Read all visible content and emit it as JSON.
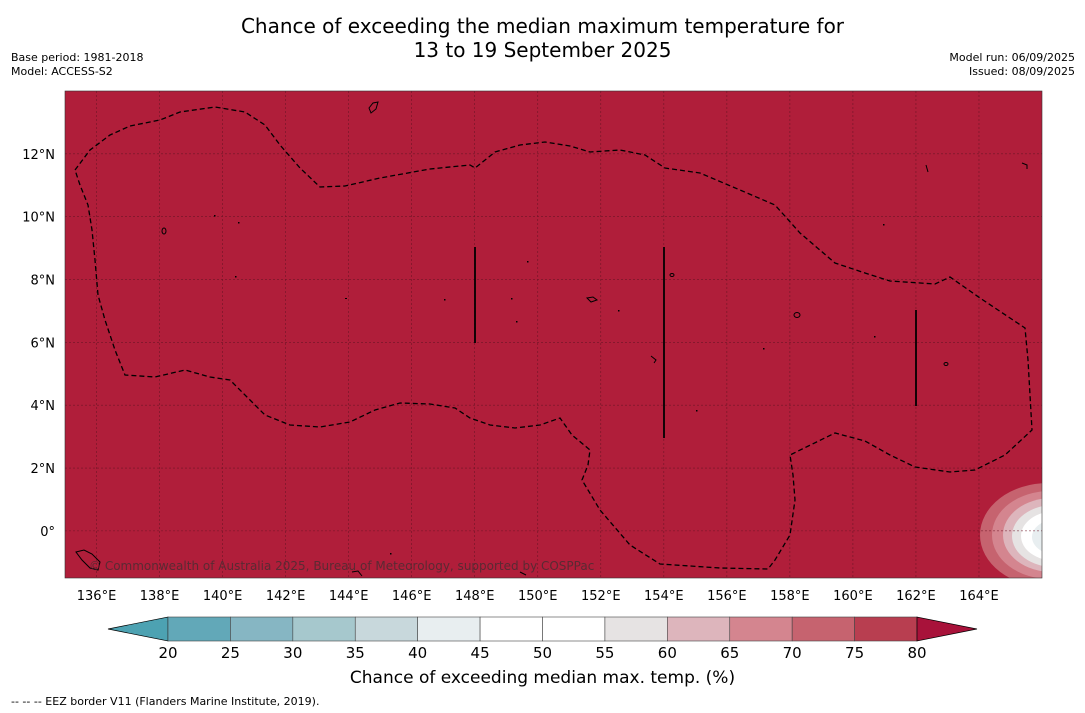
{
  "title": {
    "line1": "Chance of exceeding the median maximum temperature for",
    "line2": "13 to 19 September 2025"
  },
  "meta_left": {
    "base_period": "Base period: 1981-2018",
    "model": "Model: ACCESS-S2"
  },
  "meta_right": {
    "model_run": "Model run: 06/09/2025",
    "issued": "Issued: 08/09/2025"
  },
  "copyright": "© Commonwealth of Australia 2025, Bureau of Meteorology, supported by COSPPac",
  "footnote": "-- -- -- EEZ border V11 (Flanders Marine Institute, 2019).",
  "map": {
    "fill_color": "#b01e3a",
    "lon_range": [
      135,
      166
    ],
    "lat_range": [
      -1.5,
      14
    ],
    "lon_ticks": [
      "136°E",
      "138°E",
      "140°E",
      "142°E",
      "144°E",
      "146°E",
      "148°E",
      "150°E",
      "152°E",
      "154°E",
      "156°E",
      "158°E",
      "160°E",
      "162°E",
      "164°E"
    ],
    "lat_ticks": [
      "0°",
      "2°N",
      "4°N",
      "6°N",
      "8°N",
      "10°N",
      "12°N"
    ],
    "grid": true,
    "cool_anomaly_location": "bottom-right edge near 0°, 165°E"
  },
  "colorbar": {
    "title": "Chance of exceeding median max. temp. (%)",
    "ticks": [
      "20",
      "25",
      "30",
      "35",
      "40",
      "45",
      "50",
      "55",
      "60",
      "65",
      "70",
      "75",
      "80"
    ],
    "colors": [
      "#62a8b8",
      "#86b6c3",
      "#a6c8cd",
      "#c8d8dc",
      "#e8eef0",
      "#ffffff",
      "#ffffff",
      "#e6e3e3",
      "#ddb5bc",
      "#d4858f",
      "#c6636f",
      "#b83e50"
    ],
    "under_color": "#4da2b2",
    "over_color": "#a8123a"
  }
}
